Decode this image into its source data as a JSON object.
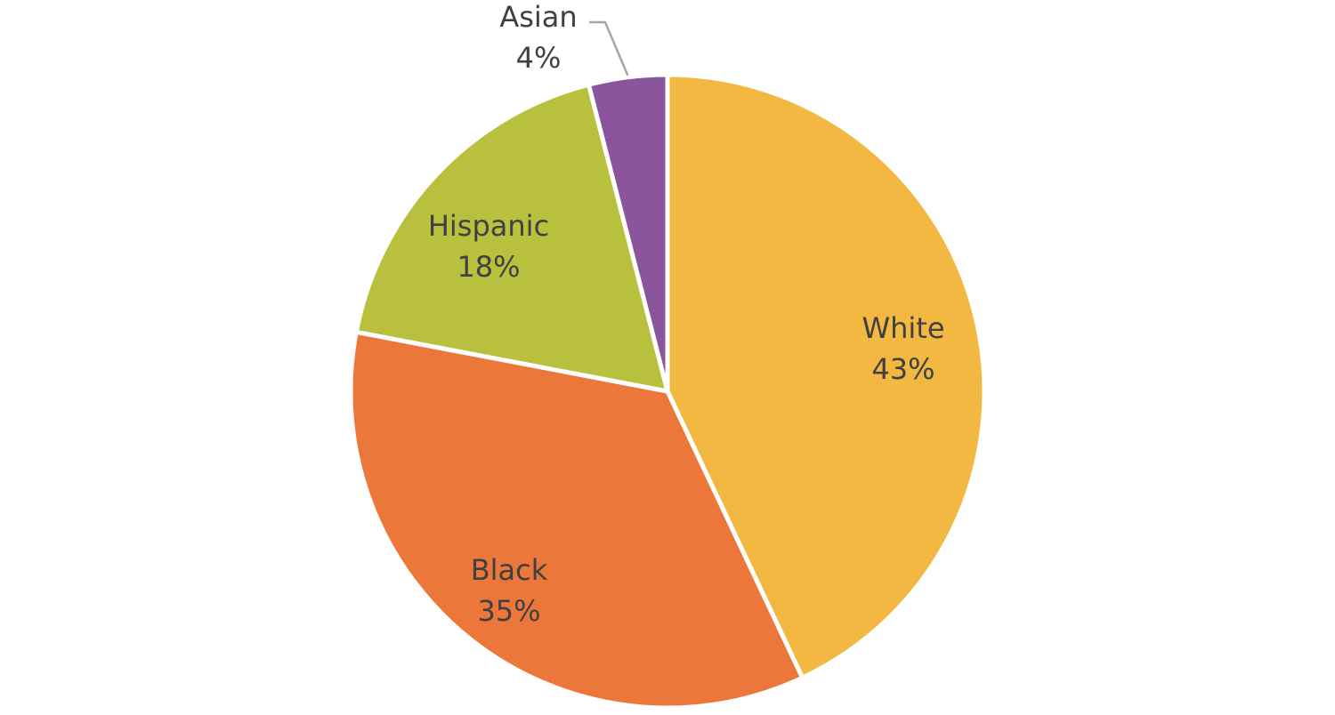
{
  "chart_data": {
    "type": "pie",
    "title": "",
    "start_angle_deg": 0,
    "direction": "clockwise",
    "slices": [
      {
        "label": "White",
        "value": 43,
        "value_label": "43%",
        "color": "#F2B842"
      },
      {
        "label": "Black",
        "value": 35,
        "value_label": "35%",
        "color": "#EC773A"
      },
      {
        "label": "Hispanic",
        "value": 18,
        "value_label": "18%",
        "color": "#B8C03E"
      },
      {
        "label": "Asian",
        "value": 4,
        "value_label": "4%",
        "color": "#8A559C"
      }
    ],
    "slice_border_color": "#ffffff",
    "leader_line_color": "#A6A6A6"
  }
}
